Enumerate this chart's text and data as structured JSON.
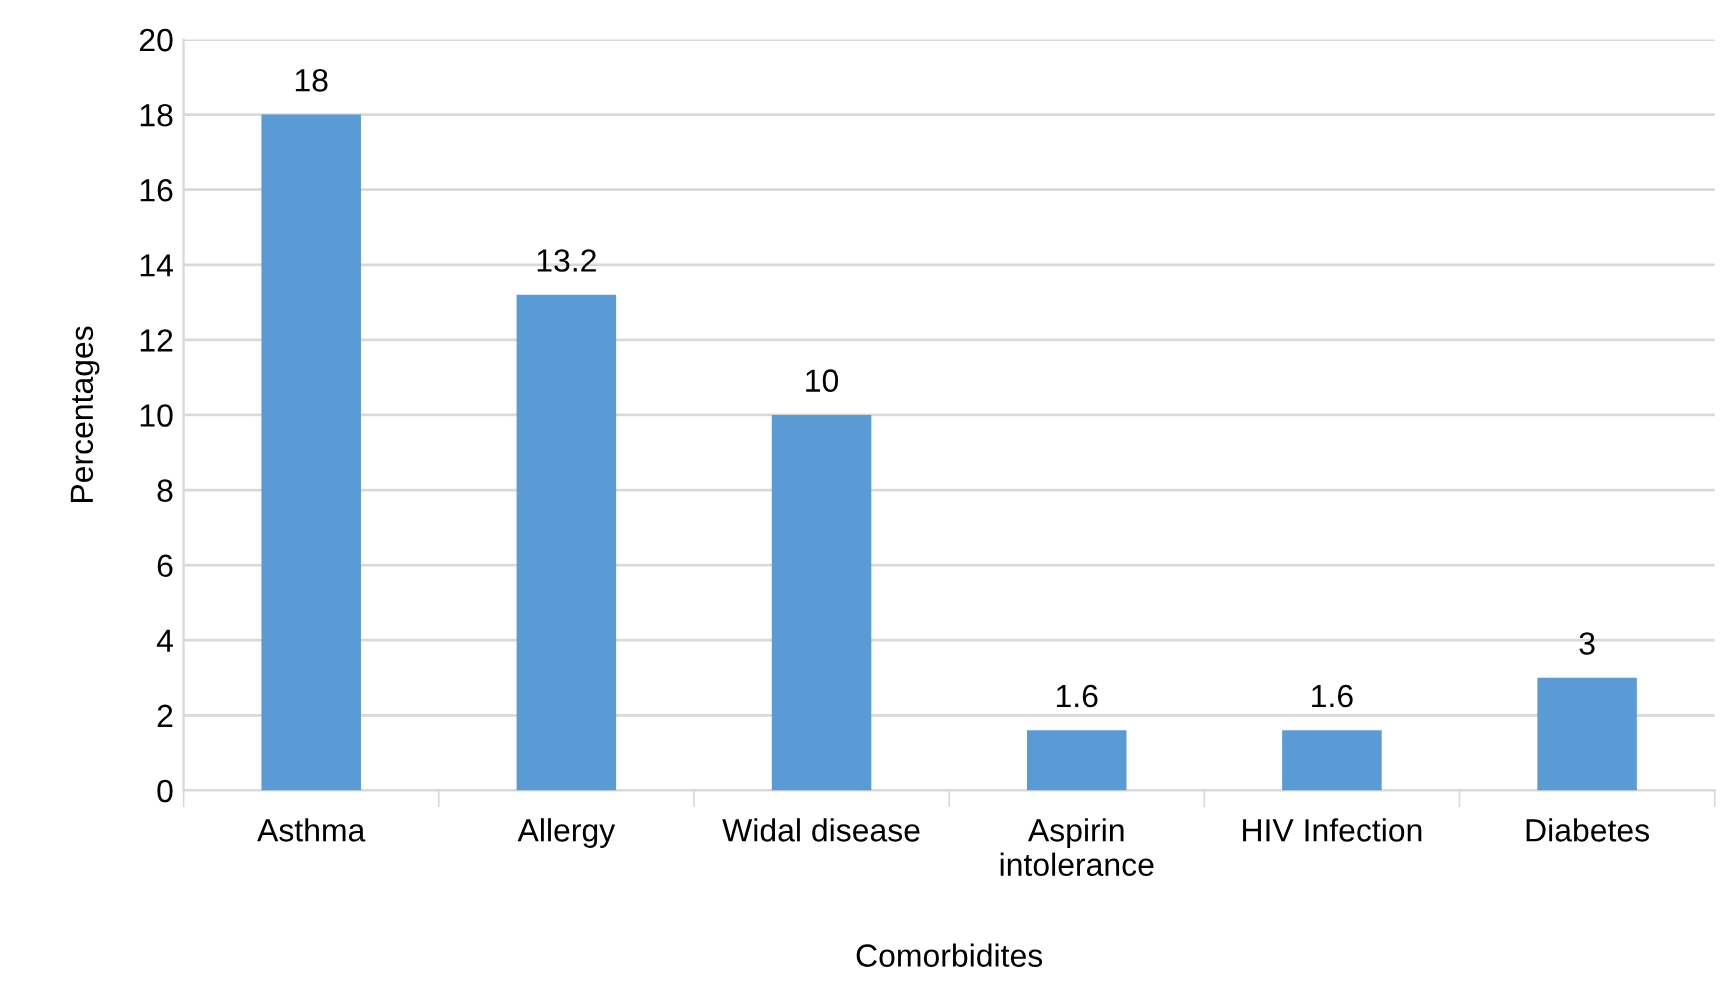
{
  "chart_data": {
    "type": "bar",
    "xlabel": "Comorbidites",
    "ylabel": "Percentages",
    "categories": [
      "Asthma",
      "Allergy",
      "Widal disease",
      "Aspirin\nintolerance",
      "HIV Infection",
      "Diabetes"
    ],
    "values": [
      18,
      13.2,
      10,
      1.6,
      1.6,
      3
    ],
    "color": "#5b9bd5",
    "ylim": [
      0,
      20
    ],
    "yticks": [
      0,
      2,
      4,
      6,
      8,
      10,
      12,
      14,
      16,
      18,
      20
    ],
    "grid": "y",
    "data_labels": true
  }
}
